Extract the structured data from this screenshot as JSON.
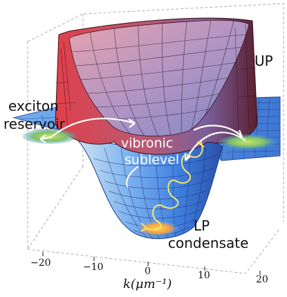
{
  "labels": {
    "up": "UP",
    "exciton_line1": "exciton",
    "exciton_line2": "reservoir",
    "vibronic_line1": "vibronic",
    "vibronic_line2": "sublevel",
    "lp_line1": "LP",
    "lp_line2": "condensate"
  },
  "axis": {
    "title": "k(μm⁻¹)",
    "ticks": [
      "−20",
      "−10",
      "0",
      "10",
      "20"
    ]
  },
  "colors": {
    "upper_polariton": "#c0303a",
    "lower_polariton": "#6aa6ee",
    "flat_sheet": "#5b8fdc",
    "emission_wave": "#f4e86a",
    "reservoir_glow": "#9cc85a",
    "condensate_glow": "#f3b24a"
  }
}
